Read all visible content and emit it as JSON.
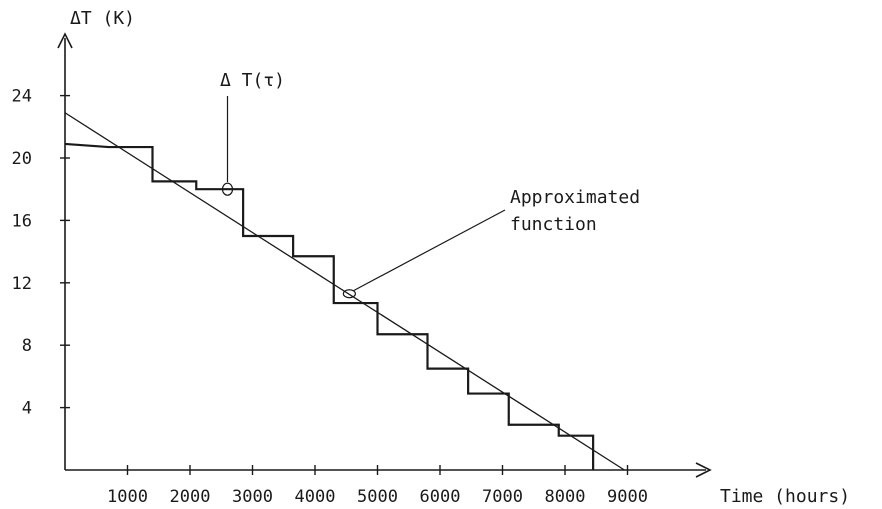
{
  "chart_data": {
    "type": "line",
    "title": "",
    "ylabel": "ΔT (K)",
    "xlabel": "Time (hours)",
    "xlim": [
      0,
      10000
    ],
    "ylim": [
      0,
      28
    ],
    "grid": false,
    "x_ticks": [
      1000,
      2000,
      3000,
      4000,
      5000,
      6000,
      7000,
      8000,
      9000
    ],
    "x_tick_labels": [
      "1000",
      "2000",
      "3000",
      "4000",
      "5000",
      "6000",
      "7000",
      "8000",
      "9000"
    ],
    "y_ticks": [
      4,
      8,
      12,
      16,
      20,
      24
    ],
    "y_tick_labels": [
      "4",
      "8",
      "12",
      "16",
      "20",
      "24"
    ],
    "series": [
      {
        "name": "",
        "style": "step",
        "x": [
          0,
          700,
          1400,
          1400,
          2100,
          2100,
          2850,
          2850,
          3650,
          3650,
          4300,
          4300,
          5000,
          5000,
          5800,
          5800,
          6450,
          6450,
          7100,
          7100,
          7900,
          7900,
          8450,
          8450
        ],
        "y": [
          20.9,
          20.7,
          20.7,
          18.5,
          18.5,
          18.0,
          18.0,
          15.0,
          15.0,
          13.7,
          13.7,
          10.7,
          10.7,
          8.7,
          8.7,
          6.5,
          6.5,
          4.9,
          4.9,
          2.9,
          2.9,
          2.2,
          2.2,
          0
        ]
      },
      {
        "name": "",
        "style": "line",
        "x": [
          0,
          8950
        ],
        "y": [
          22.9,
          0
        ]
      }
    ],
    "annotations": [
      {
        "label": "Δ T(τ)",
        "target": {
          "x": 2600,
          "y": 18.0
        }
      },
      {
        "label_lines": [
          "Approximated",
          "function"
        ],
        "target": {
          "x": 4550,
          "y": 11.3
        }
      }
    ]
  }
}
